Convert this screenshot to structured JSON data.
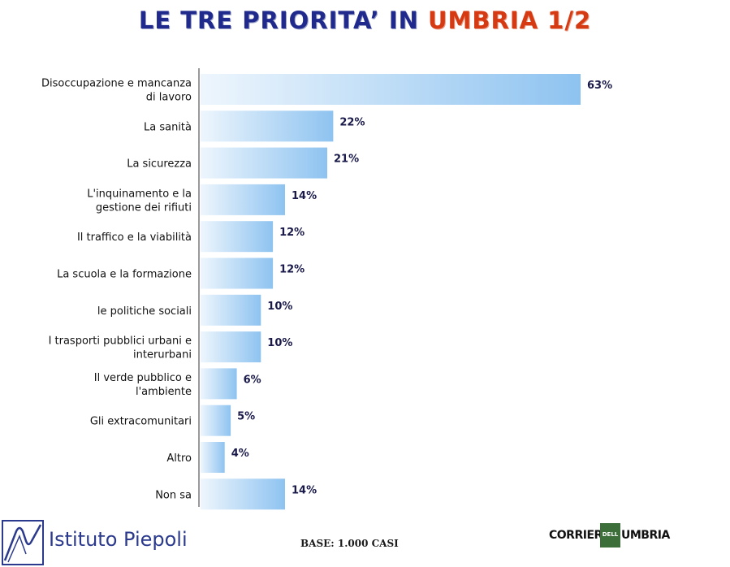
{
  "title": {
    "part1": "LE TRE PRIORITA’ IN ",
    "part2": "UMBRIA 1/2"
  },
  "footer": {
    "base": "BASE: 1.000 CASI"
  },
  "logos": {
    "left": "Istituto Piepoli",
    "right_part1": "CORRIERE",
    "right_part2": "DELL",
    "right_part3": "UMBRIA"
  },
  "colors": {
    "bar_start": "#eef6fd",
    "bar_end": "#8ec3f0",
    "title_blue": "#1f2a8c",
    "title_red": "#d63a12"
  },
  "chart_data": {
    "type": "bar",
    "orientation": "horizontal",
    "categories": [
      [
        "Disoccupazione e mancanza",
        "di lavoro"
      ],
      [
        "La sanità"
      ],
      [
        "La sicurezza"
      ],
      [
        "L'inquinamento e la",
        "gestione dei rifiuti"
      ],
      [
        "Il traffico e la viabilità"
      ],
      [
        "La scuola e la formazione"
      ],
      [
        "le politiche sociali"
      ],
      [
        "I trasporti pubblici urbani e",
        "interurbani"
      ],
      [
        "Il verde pubblico e",
        "l'ambiente"
      ],
      [
        "Gli extracomunitari"
      ],
      [
        "Altro"
      ],
      [
        "Non sa"
      ]
    ],
    "values": [
      63,
      22,
      21,
      14,
      12,
      12,
      10,
      10,
      6,
      5,
      4,
      14
    ],
    "value_labels": [
      "63%",
      "22%",
      "21%",
      "14%",
      "12%",
      "12%",
      "10%",
      "10%",
      "6%",
      "5%",
      "4%",
      "14%"
    ],
    "xlim": [
      0,
      63
    ]
  }
}
